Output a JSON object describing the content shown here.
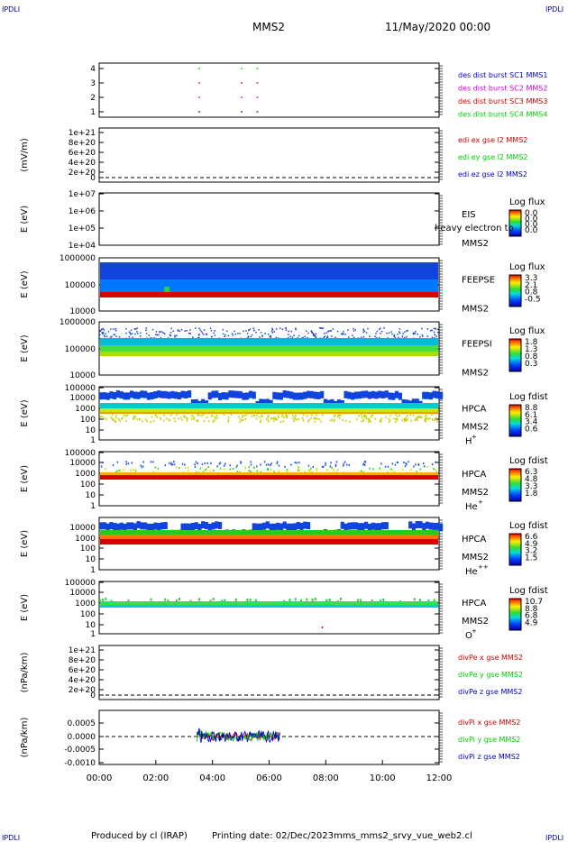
{
  "corner_tag": "IPDLI",
  "header": {
    "left": "MMS2",
    "right": "11/May/2020 00:00"
  },
  "footer": {
    "producer": "Produced by cl (IRAP)",
    "date": "Printing date: 02/Dec/2023",
    "file": "mms_mms2_srvy_vue_web2.cl"
  },
  "colors": {
    "blue": "#0000cc",
    "magenta": "#cc00cc",
    "red": "#cc0000",
    "green": "#00cc00"
  },
  "xaxis": {
    "ticks": [
      "00:00",
      "02:00",
      "04:00",
      "06:00",
      "08:00",
      "10:00",
      "12:00"
    ]
  },
  "chart_data": [
    {
      "type": "scatter",
      "id": "burst",
      "yticks": [
        "4",
        "3",
        "2",
        "1"
      ],
      "legend": [
        "des dist burst SC1 MMS1",
        "des dist burst SC2 MMS2",
        "des dist burst SC3 MMS3",
        "des dist burst SC4 MMS4"
      ],
      "series": [
        {
          "sc": 4,
          "times": [
            3.5,
            5.0,
            5.55
          ]
        },
        {
          "sc": 3,
          "times": [
            3.5,
            5.0,
            5.55
          ]
        },
        {
          "sc": 2,
          "times": [
            3.5,
            5.0,
            5.55
          ]
        },
        {
          "sc": 1,
          "times": [
            3.5,
            5.0,
            5.55
          ]
        }
      ]
    },
    {
      "type": "line",
      "id": "efield",
      "ylabel": "(mV/m)",
      "yticks": [
        "1e+21",
        "8e+20",
        "6e+20",
        "4e+20",
        "2e+20",
        "0"
      ],
      "legend": [
        "edi ex gse l2 MMS2",
        "edi ey gse l2 MMS2",
        "edi ez gse l2 MMS2"
      ]
    },
    {
      "type": "heatmap",
      "id": "eis",
      "ylabel": "E (eV)",
      "yticks": [
        "1e+07",
        "1e+06",
        "1e+05",
        "1e+04"
      ],
      "labels": [
        "EIS",
        "MMS2"
      ],
      "overlay": "heavy electron to",
      "cbar_title": "Log flux",
      "cbar": [
        "0.0",
        "0.0",
        "0.0",
        "0.0"
      ]
    },
    {
      "type": "heatmap",
      "id": "feepse",
      "ylabel": "E (eV)",
      "yticks": [
        "1000000",
        "100000",
        "10000"
      ],
      "labels": [
        "FEEPSE",
        "MMS2"
      ],
      "cbar_title": "Log flux",
      "cbar": [
        "3.3",
        "2.1",
        "0.8",
        "-0.5"
      ]
    },
    {
      "type": "heatmap",
      "id": "feepsi",
      "ylabel": "E (eV)",
      "yticks": [
        "1000000",
        "100000",
        "10000"
      ],
      "labels": [
        "FEEPSI",
        "MMS2"
      ],
      "cbar_title": "Log flux",
      "cbar": [
        "1.8",
        "1.3",
        "0.8",
        "0.3"
      ]
    },
    {
      "type": "heatmap",
      "id": "hpca_h",
      "ylabel": "E (eV)",
      "yticks": [
        "100000",
        "10000",
        "1000",
        "100",
        "10",
        "1"
      ],
      "labels": [
        "HPCA",
        "MMS2",
        "H",
        "+"
      ],
      "cbar_title": "Log fdist",
      "cbar": [
        "8.8",
        "6.1",
        "3.4",
        "0.6"
      ]
    },
    {
      "type": "heatmap",
      "id": "hpca_he",
      "ylabel": "E (eV)",
      "yticks": [
        "100000",
        "10000",
        "1000",
        "100",
        "10",
        "1"
      ],
      "labels": [
        "HPCA",
        "MMS2",
        "He",
        "+"
      ],
      "cbar_title": "Log fdist",
      "cbar": [
        "6.3",
        "4.8",
        "3.3",
        "1.8"
      ]
    },
    {
      "type": "heatmap",
      "id": "hpca_hepp",
      "ylabel": "E (eV)",
      "yticks": [
        "10000",
        "1000",
        "100",
        "10",
        "1"
      ],
      "labels": [
        "HPCA",
        "MMS2",
        "He",
        "++"
      ],
      "cbar_title": "Log fdist",
      "cbar": [
        "6.6",
        "4.9",
        "3.2",
        "1.5"
      ]
    },
    {
      "type": "heatmap",
      "id": "hpca_o",
      "ylabel": "E (eV)",
      "yticks": [
        "100000",
        "10000",
        "1000",
        "100",
        "10",
        "1"
      ],
      "labels": [
        "HPCA",
        "MMS2",
        "O",
        "+"
      ],
      "cbar_title": "Log fdist",
      "cbar": [
        "10.7",
        "8.8",
        "6.8",
        "4.9"
      ]
    },
    {
      "type": "line",
      "id": "divpe",
      "ylabel": "(nPa/km)",
      "yticks": [
        "1e+21",
        "8e+20",
        "6e+20",
        "4e+20",
        "2e+20",
        "0"
      ],
      "legend": [
        "divPe x gse MMS2",
        "divPe y gse MMS2",
        "divPe z gse MMS2"
      ]
    },
    {
      "type": "line",
      "id": "divpi",
      "ylabel": "(nPa/km)",
      "yticks": [
        "0.0005",
        "0.0000",
        "-0.0005",
        "-0.0010"
      ],
      "legend": [
        "divPi x gse MMS2",
        "divPi y gse MMS2",
        "divPi z gse MMS2"
      ]
    }
  ]
}
